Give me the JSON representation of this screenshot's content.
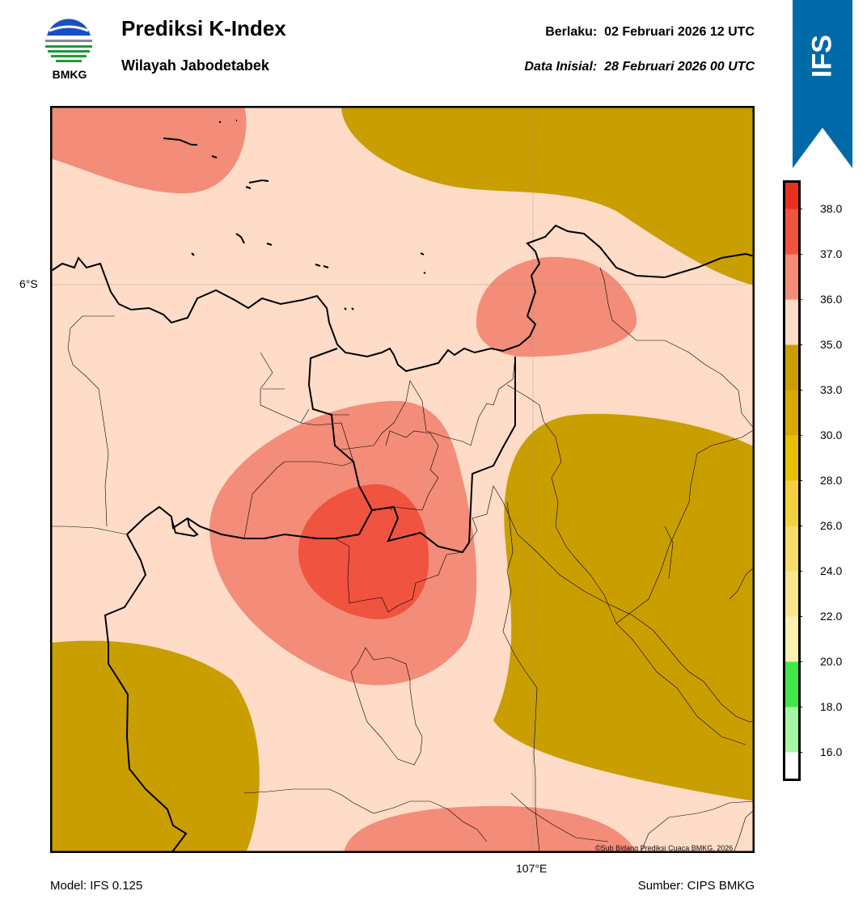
{
  "header": {
    "title": "Prediksi K-Index",
    "subtitle": "Wilayah Jabodetabek",
    "valid_label": "Berlaku:",
    "valid_value": "02 Februari 2026 12 UTC",
    "init_label": "Data Inisial:",
    "init_value": "28 Februari 2026 00 UTC"
  },
  "logo": {
    "text": "BMKG"
  },
  "ribbon": {
    "text": "IFS",
    "color": "#0069a8"
  },
  "map": {
    "lat_label": "6°S",
    "lon_label": "107°E",
    "copyright": "©Sub Bidang Prediksi Cuaca BMKG, 2026"
  },
  "colorbar": {
    "labels": [
      "38.0",
      "37.0",
      "36.0",
      "35.0",
      "33.0",
      "30.0",
      "28.0",
      "26.0",
      "24.0",
      "22.0",
      "20.0",
      "18.0",
      "16.0"
    ],
    "colors_top_to_bottom": [
      "#e8301e",
      "#f0533f",
      "#f38c78",
      "#fedcc8",
      "#c99e00",
      "#d7aa00",
      "#e8c000",
      "#f2d040",
      "#f6dc6a",
      "#fae58f",
      "#fdf0b0",
      "#3ee84b",
      "#a6f7a5",
      "#ffffff"
    ]
  },
  "footer": {
    "model": "Model: IFS 0.125",
    "source": "Sumber: CIPS BMKG"
  }
}
